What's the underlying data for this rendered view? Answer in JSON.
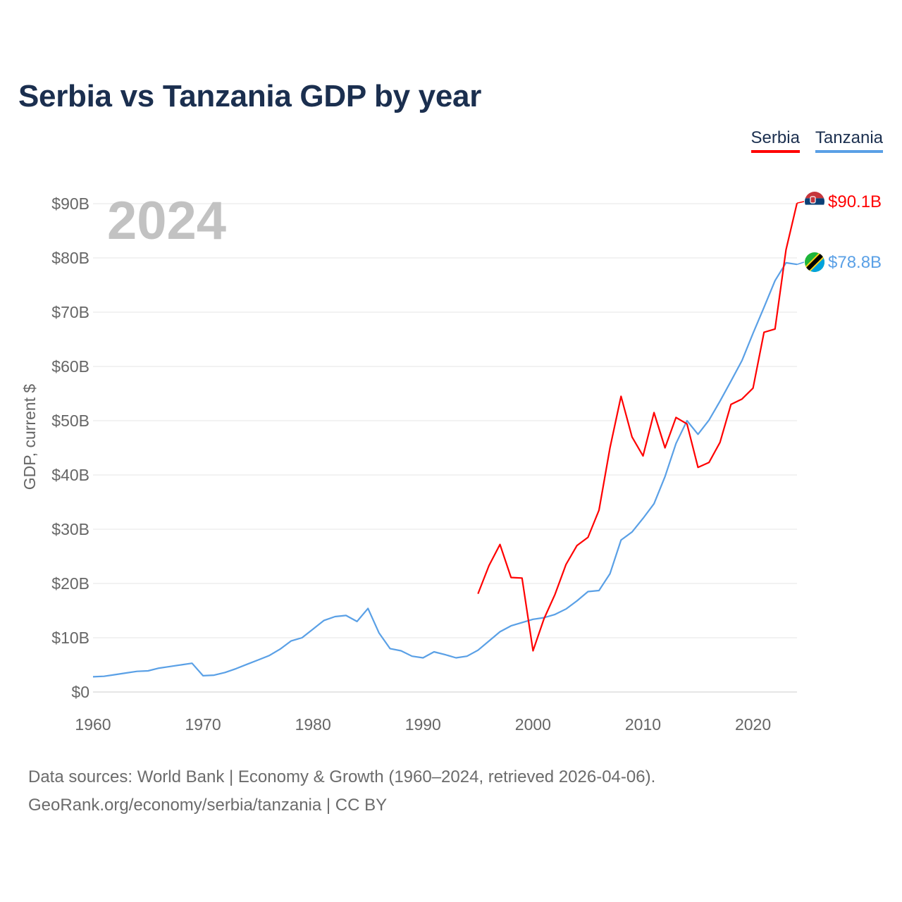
{
  "title": "Serbia vs Tanzania GDP by year",
  "legend": {
    "serbia": "Serbia",
    "tanzania": "Tanzania"
  },
  "colors": {
    "serbia": "#ff0000",
    "tanzania": "#5aa0e6",
    "title": "#1b2f4f"
  },
  "footer": {
    "line1": "Data sources: World Bank | Economy & Growth (1960–2024, retrieved 2026-04-06).",
    "line2": "GeoRank.org/economy/serbia/tanzania | CC BY"
  },
  "chart_data": {
    "type": "line",
    "title": "Serbia vs Tanzania GDP by year",
    "xlabel": "",
    "ylabel": "GDP, current $",
    "year_label": "2024",
    "xlim": [
      1960,
      2024
    ],
    "ylim": [
      0,
      90
    ],
    "x_ticks": [
      1960,
      1970,
      1980,
      1990,
      2000,
      2010,
      2020
    ],
    "x_tick_labels": [
      "1960",
      "1970",
      "1980",
      "1990",
      "2000",
      "2010",
      "2020"
    ],
    "y_ticks": [
      0,
      10,
      20,
      30,
      40,
      50,
      60,
      70,
      80,
      90
    ],
    "y_tick_labels": [
      "$0",
      "$10B",
      "$20B",
      "$30B",
      "$40B",
      "$50B",
      "$60B",
      "$70B",
      "$80B",
      "$90B"
    ],
    "grid": true,
    "legend_position": "top-right",
    "series": [
      {
        "key": "serbia",
        "name": "Serbia",
        "end_label": "$90.1B",
        "flag_icon": "serbia-flag-icon",
        "x": [
          1995,
          1996,
          1997,
          1998,
          1999,
          2000,
          2001,
          2002,
          2003,
          2004,
          2005,
          2006,
          2007,
          2008,
          2009,
          2010,
          2011,
          2012,
          2013,
          2014,
          2015,
          2016,
          2017,
          2018,
          2019,
          2020,
          2021,
          2022,
          2023,
          2024
        ],
        "values": [
          18.1,
          23.3,
          27.2,
          21.1,
          21.0,
          7.6,
          13.5,
          18.0,
          23.5,
          27.0,
          28.5,
          33.5,
          45.0,
          54.5,
          47.0,
          43.5,
          51.5,
          45.0,
          50.6,
          49.4,
          41.4,
          42.3,
          46.0,
          53.0,
          54.0,
          56.0,
          66.3,
          66.9,
          81.5,
          90.1
        ]
      },
      {
        "key": "tanzania",
        "name": "Tanzania",
        "end_label": "$78.8B",
        "flag_icon": "tanzania-flag-icon",
        "x": [
          1960,
          1961,
          1962,
          1963,
          1964,
          1965,
          1966,
          1967,
          1968,
          1969,
          1970,
          1971,
          1972,
          1973,
          1974,
          1975,
          1976,
          1977,
          1978,
          1979,
          1980,
          1981,
          1982,
          1983,
          1984,
          1985,
          1986,
          1987,
          1988,
          1989,
          1990,
          1991,
          1992,
          1993,
          1994,
          1995,
          1996,
          1997,
          1998,
          1999,
          2000,
          2001,
          2002,
          2003,
          2004,
          2005,
          2006,
          2007,
          2008,
          2009,
          2010,
          2011,
          2012,
          2013,
          2014,
          2015,
          2016,
          2017,
          2018,
          2019,
          2020,
          2021,
          2022,
          2023,
          2024
        ],
        "values": [
          2.8,
          2.9,
          3.2,
          3.5,
          3.8,
          3.9,
          4.4,
          4.7,
          5.0,
          5.3,
          3.0,
          3.1,
          3.6,
          4.3,
          5.1,
          5.9,
          6.7,
          7.9,
          9.4,
          10.0,
          11.6,
          13.2,
          13.9,
          14.1,
          13.0,
          15.4,
          10.9,
          8.0,
          7.6,
          6.6,
          6.3,
          7.4,
          6.9,
          6.3,
          6.6,
          7.7,
          9.4,
          11.1,
          12.2,
          12.8,
          13.4,
          13.7,
          14.3,
          15.3,
          16.8,
          18.5,
          18.7,
          21.8,
          28.0,
          29.5,
          32.0,
          34.7,
          39.7,
          45.8,
          50.0,
          47.5,
          50.1,
          53.6,
          57.3,
          61.1,
          66.1,
          70.9,
          75.8,
          79.1,
          78.8
        ]
      }
    ]
  }
}
